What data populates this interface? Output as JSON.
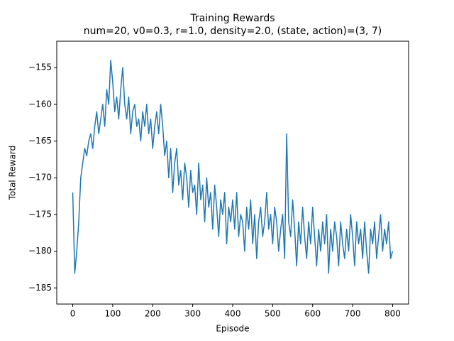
{
  "chart_data": {
    "type": "line",
    "title": "Training Rewards",
    "subtitle": "num=20, v0=0.3, r=1.0, density=2.0, (state, action)=(3, 7)",
    "x_label": "Episode",
    "y_label": "Total Reward",
    "x": [
      0,
      5,
      10,
      15,
      20,
      25,
      30,
      35,
      40,
      45,
      50,
      55,
      60,
      65,
      70,
      75,
      80,
      85,
      90,
      95,
      100,
      105,
      110,
      115,
      120,
      125,
      130,
      135,
      140,
      145,
      150,
      155,
      160,
      165,
      170,
      175,
      180,
      185,
      190,
      195,
      200,
      205,
      210,
      215,
      220,
      225,
      230,
      235,
      240,
      245,
      250,
      255,
      260,
      265,
      270,
      275,
      280,
      285,
      290,
      295,
      300,
      305,
      310,
      315,
      320,
      325,
      330,
      335,
      340,
      345,
      350,
      355,
      360,
      365,
      370,
      375,
      380,
      385,
      390,
      395,
      400,
      405,
      410,
      415,
      420,
      425,
      430,
      435,
      440,
      445,
      450,
      455,
      460,
      465,
      470,
      475,
      480,
      485,
      490,
      495,
      500,
      505,
      510,
      515,
      520,
      525,
      530,
      535,
      540,
      545,
      550,
      555,
      560,
      565,
      570,
      575,
      580,
      585,
      590,
      595,
      600,
      605,
      610,
      615,
      620,
      625,
      630,
      635,
      640,
      645,
      650,
      655,
      660,
      665,
      670,
      675,
      680,
      685,
      690,
      695,
      700,
      705,
      710,
      715,
      720,
      725,
      730,
      735,
      740,
      745,
      750,
      755,
      760,
      765,
      770,
      775,
      780,
      785,
      790,
      795,
      800
    ],
    "series": [
      {
        "name": "Total Reward",
        "color": "#1f77b4",
        "values": [
          -172,
          -183,
          -180,
          -176,
          -170,
          -168,
          -166,
          -167,
          -165,
          -164,
          -166,
          -163,
          -161,
          -164,
          -162,
          -160,
          -163,
          -158,
          -160,
          -154,
          -157,
          -161,
          -159,
          -162,
          -158,
          -155,
          -160,
          -162,
          -159,
          -164,
          -161,
          -160,
          -163,
          -162,
          -165,
          -161,
          -163,
          -160,
          -164,
          -162,
          -166,
          -163,
          -161,
          -164,
          -160,
          -163,
          -167,
          -165,
          -170,
          -166,
          -172,
          -168,
          -166,
          -171,
          -169,
          -173,
          -168,
          -170,
          -174,
          -169,
          -172,
          -171,
          -175,
          -168,
          -173,
          -171,
          -176,
          -170,
          -174,
          -172,
          -177,
          -171,
          -174,
          -178,
          -173,
          -175,
          -172,
          -179,
          -174,
          -176,
          -173,
          -177,
          -172,
          -178,
          -175,
          -176,
          -180,
          -174,
          -177,
          -173,
          -179,
          -175,
          -181,
          -176,
          -174,
          -178,
          -176,
          -172,
          -177,
          -175,
          -179,
          -174,
          -176,
          -180,
          -177,
          -175,
          -181,
          -164,
          -176,
          -178,
          -173,
          -177,
          -182,
          -176,
          -179,
          -174,
          -178,
          -181,
          -176,
          -179,
          -174,
          -178,
          -182,
          -177,
          -180,
          -176,
          -179,
          -175,
          -183,
          -177,
          -180,
          -176,
          -178,
          -182,
          -176,
          -179,
          -181,
          -177,
          -180,
          -175,
          -178,
          -182,
          -176,
          -179,
          -177,
          -181,
          -176,
          -180,
          -183,
          -177,
          -179,
          -176,
          -181,
          -178,
          -175,
          -180,
          -177,
          -179,
          -176,
          -181,
          -180
        ]
      }
    ],
    "xlim": [
      -40,
      840
    ],
    "ylim": [
      -187.2,
      -151.4
    ],
    "xticks": [
      0,
      100,
      200,
      300,
      400,
      500,
      600,
      700,
      800
    ],
    "yticks": [
      {
        "value": -185,
        "label": "−185"
      },
      {
        "value": -180,
        "label": "−180"
      },
      {
        "value": -175,
        "label": "−175"
      },
      {
        "value": -170,
        "label": "−170"
      },
      {
        "value": -165,
        "label": "−165"
      },
      {
        "value": -160,
        "label": "−160"
      },
      {
        "value": -155,
        "label": "−155"
      }
    ],
    "grid": false
  }
}
